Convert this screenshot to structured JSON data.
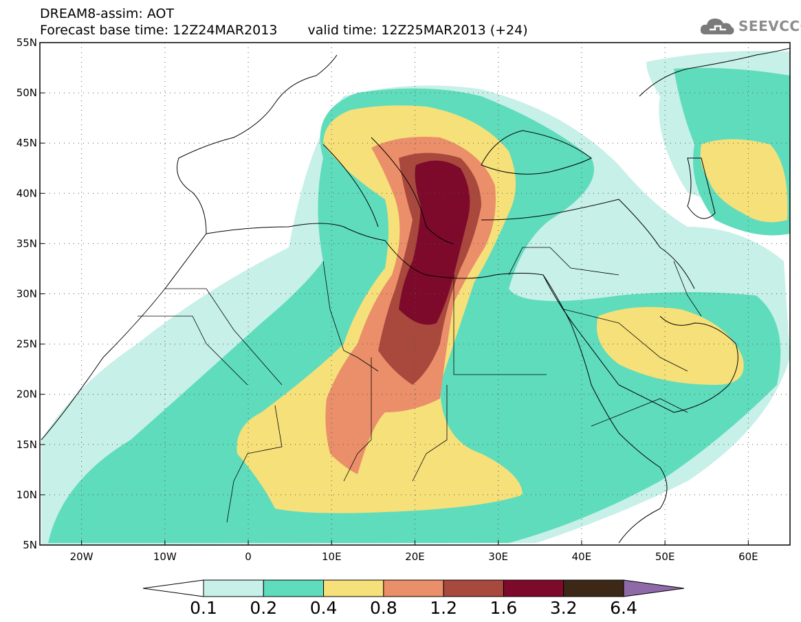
{
  "header": {
    "title_line1": "DREAM8-assim: AOT",
    "base_time": "Forecast base time: 12Z24MAR2013",
    "valid_time": "valid time: 12Z25MAR2013 (+24)"
  },
  "logo": {
    "text": "SEEVCCC",
    "icon": "cloud-icon"
  },
  "axes": {
    "lat_labels": [
      "55N",
      "50N",
      "45N",
      "40N",
      "35N",
      "30N",
      "25N",
      "20N",
      "15N",
      "10N",
      "5N"
    ],
    "lon_labels": [
      "20W",
      "10W",
      "0",
      "10E",
      "20E",
      "30E",
      "40E",
      "50E",
      "60E"
    ],
    "lon_range": [
      -25,
      65
    ],
    "lat_range": [
      5,
      55
    ],
    "grid": "dotted"
  },
  "colorbar": {
    "labels": [
      "0.1",
      "0.2",
      "0.4",
      "0.8",
      "1.2",
      "1.6",
      "3.2",
      "6.4"
    ],
    "colors": [
      "#ffffff",
      "#c6f0e8",
      "#5fdcbc",
      "#f6e07a",
      "#ea8f6a",
      "#a9483d",
      "#7d0a2a",
      "#3d2818",
      "#8f6aa8"
    ]
  }
}
